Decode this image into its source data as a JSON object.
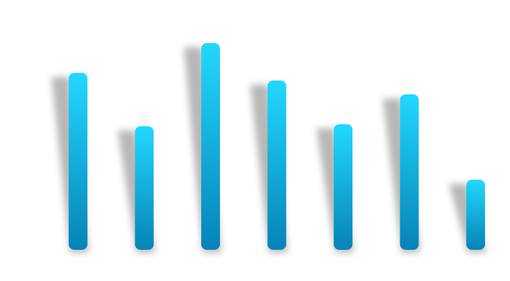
{
  "chart_data": {
    "type": "bar",
    "categories": [
      "",
      "",
      "",
      "",
      "",
      "",
      ""
    ],
    "values": [
      255,
      178,
      298,
      244,
      181,
      224,
      101
    ],
    "ylim": [
      0,
      320
    ],
    "grid": false,
    "legend": "none",
    "colors": {
      "bar_top": "#22d8ff",
      "bar_bottom": "#0683b8",
      "shadow": "#000000"
    }
  }
}
